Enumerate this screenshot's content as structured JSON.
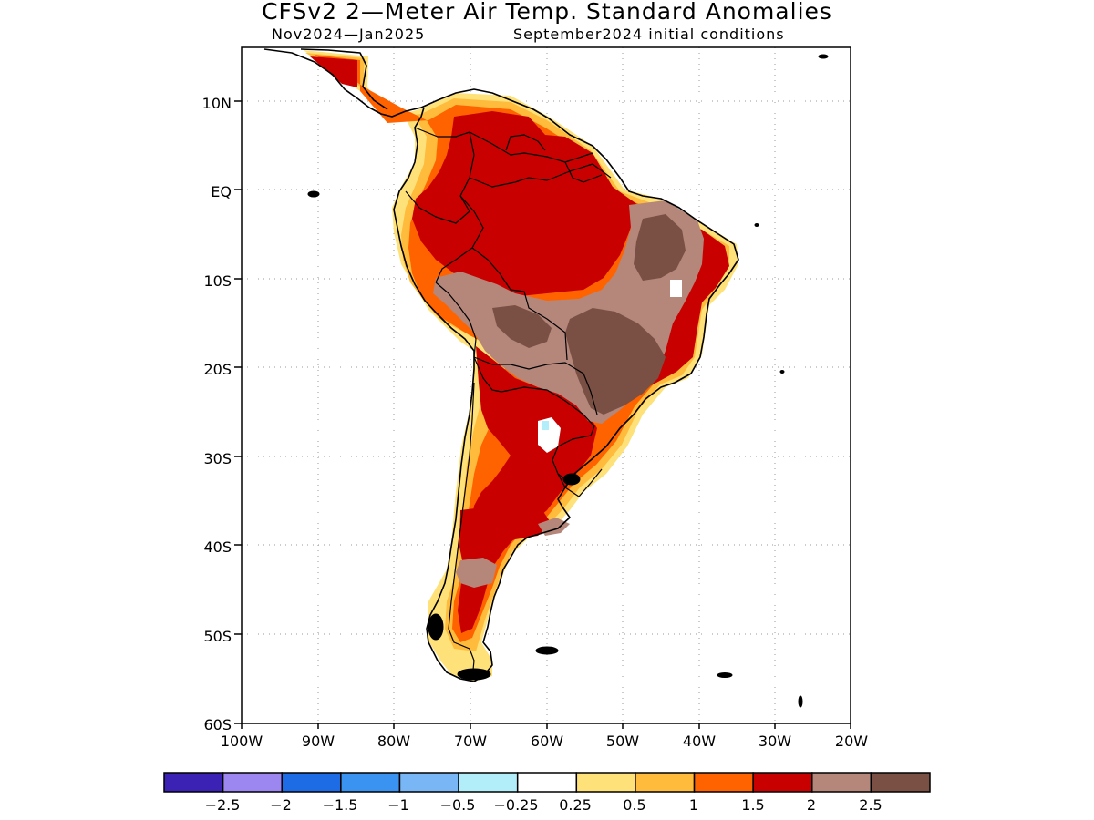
{
  "title": "CFSv2 2—Meter Air Temp. Standard Anomalies",
  "subtitle_period": "Nov2024—Jan2025",
  "subtitle_ic": "September2024 initial conditions",
  "map": {
    "region": "South America",
    "lon_range": [
      -100,
      -20
    ],
    "lat_range": [
      -60,
      5
    ],
    "lat_labels": [
      "10N",
      "EQ",
      "10S",
      "20S",
      "30S",
      "40S",
      "50S",
      "60S"
    ],
    "lon_labels": [
      "100W",
      "90W",
      "80W",
      "70W",
      "60W",
      "50W",
      "40W",
      "30W",
      "20W"
    ],
    "grid": "dotted"
  },
  "colorbar": {
    "colors": [
      "#3b22b4",
      "#9c86f0",
      "#1e6be6",
      "#3a93f0",
      "#78b6f5",
      "#b2eefa",
      "#ffffff",
      "#ffe17a",
      "#ffbb3c",
      "#ff6300",
      "#c80000",
      "#b5877b",
      "#7a5044"
    ],
    "labels": [
      "−2.5",
      "−2",
      "−1.5",
      "−1",
      "−0.5",
      "−0.25",
      "0.25",
      "0.5",
      "1",
      "1.5",
      "2",
      "2.5"
    ]
  }
}
